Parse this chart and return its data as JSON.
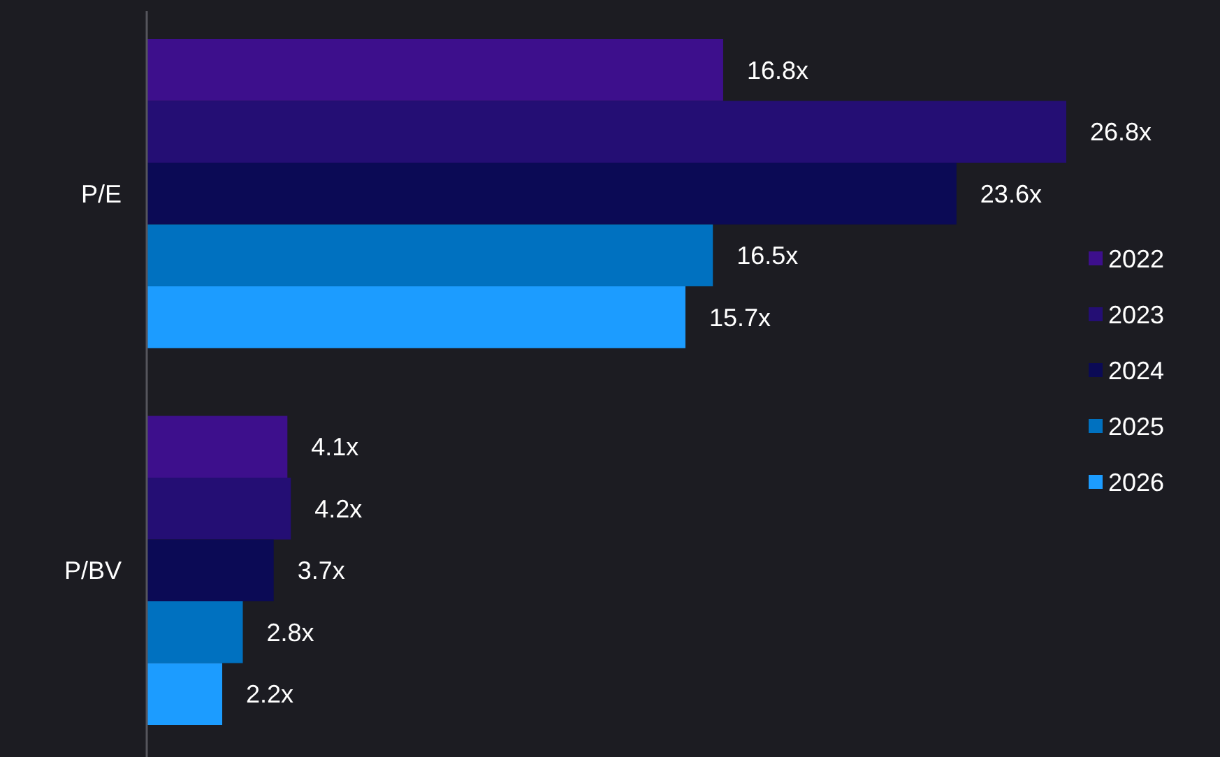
{
  "chart_data": {
    "type": "bar",
    "orientation": "horizontal",
    "categories": [
      "P/E",
      "P/BV"
    ],
    "series": [
      {
        "name": "2022",
        "color": "#3d0f8c",
        "values": [
          16.8,
          4.1
        ],
        "value_labels": [
          "16.8x",
          "4.1x"
        ]
      },
      {
        "name": "2023",
        "color": "#240e74",
        "values": [
          26.8,
          4.2
        ],
        "value_labels": [
          "26.8x",
          "4.2x"
        ]
      },
      {
        "name": "2024",
        "color": "#0b0a55",
        "values": [
          23.6,
          3.7
        ],
        "value_labels": [
          "23.6x",
          "3.7x"
        ]
      },
      {
        "name": "2025",
        "color": "#0071c0",
        "values": [
          16.5,
          2.8
        ],
        "value_labels": [
          "16.5x",
          "2.8x"
        ]
      },
      {
        "name": "2026",
        "color": "#1c9cff",
        "values": [
          15.7,
          2.2
        ],
        "value_labels": [
          "15.7x",
          "2.2x"
        ]
      }
    ],
    "legend": "right"
  }
}
